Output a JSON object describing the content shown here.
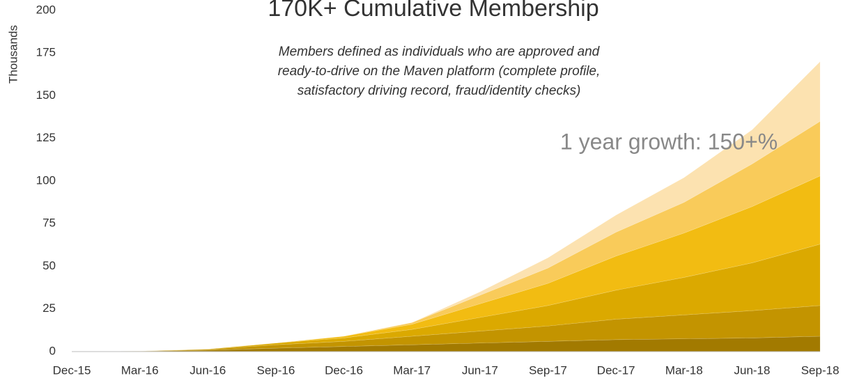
{
  "chart_data": {
    "type": "stacked_area",
    "title": "170K+ Cumulative Membership",
    "subtitle": [
      "Members defined as individuals who are approved and",
      "ready-to-drive on the Maven platform (complete profile,",
      "satisfactory driving record, fraud/identity checks)"
    ],
    "annotation": "1 year growth: 150+%",
    "y_label": "Thousands",
    "categories": [
      "Dec-15",
      "Mar-16",
      "Jun-16",
      "Sep-16",
      "Dec-16",
      "Mar-17",
      "Jun-17",
      "Sep-17",
      "Dec-17",
      "Mar-18",
      "Jun-18",
      "Sep-18"
    ],
    "series": [
      {
        "color": "#a27a00",
        "values": [
          0,
          0.2,
          0.8,
          2,
          3,
          4,
          5,
          6,
          7,
          7.5,
          8,
          9
        ]
      },
      {
        "color": "#c39400",
        "values": [
          0,
          0.1,
          0.5,
          2,
          3,
          5,
          7,
          9,
          12,
          14,
          16,
          18
        ]
      },
      {
        "color": "#dba900",
        "values": [
          0,
          0,
          0.2,
          1,
          2,
          4,
          8,
          12,
          17,
          22,
          28,
          36
        ]
      },
      {
        "color": "#f2bc12",
        "values": [
          0,
          0,
          0,
          0,
          1,
          3,
          8,
          13,
          20,
          26,
          33,
          40
        ]
      },
      {
        "color": "#f9cb5a",
        "values": [
          0,
          0,
          0,
          0,
          0,
          1,
          5,
          9,
          14,
          18,
          25,
          32
        ]
      },
      {
        "color": "#fce2b0",
        "values": [
          0,
          0,
          0,
          0,
          0,
          0,
          2,
          6,
          10,
          14.5,
          20,
          35
        ]
      }
    ],
    "ylim": [
      0,
      200
    ],
    "yticks": [
      0,
      25,
      50,
      75,
      100,
      125,
      150,
      175,
      200
    ],
    "grid": false
  }
}
